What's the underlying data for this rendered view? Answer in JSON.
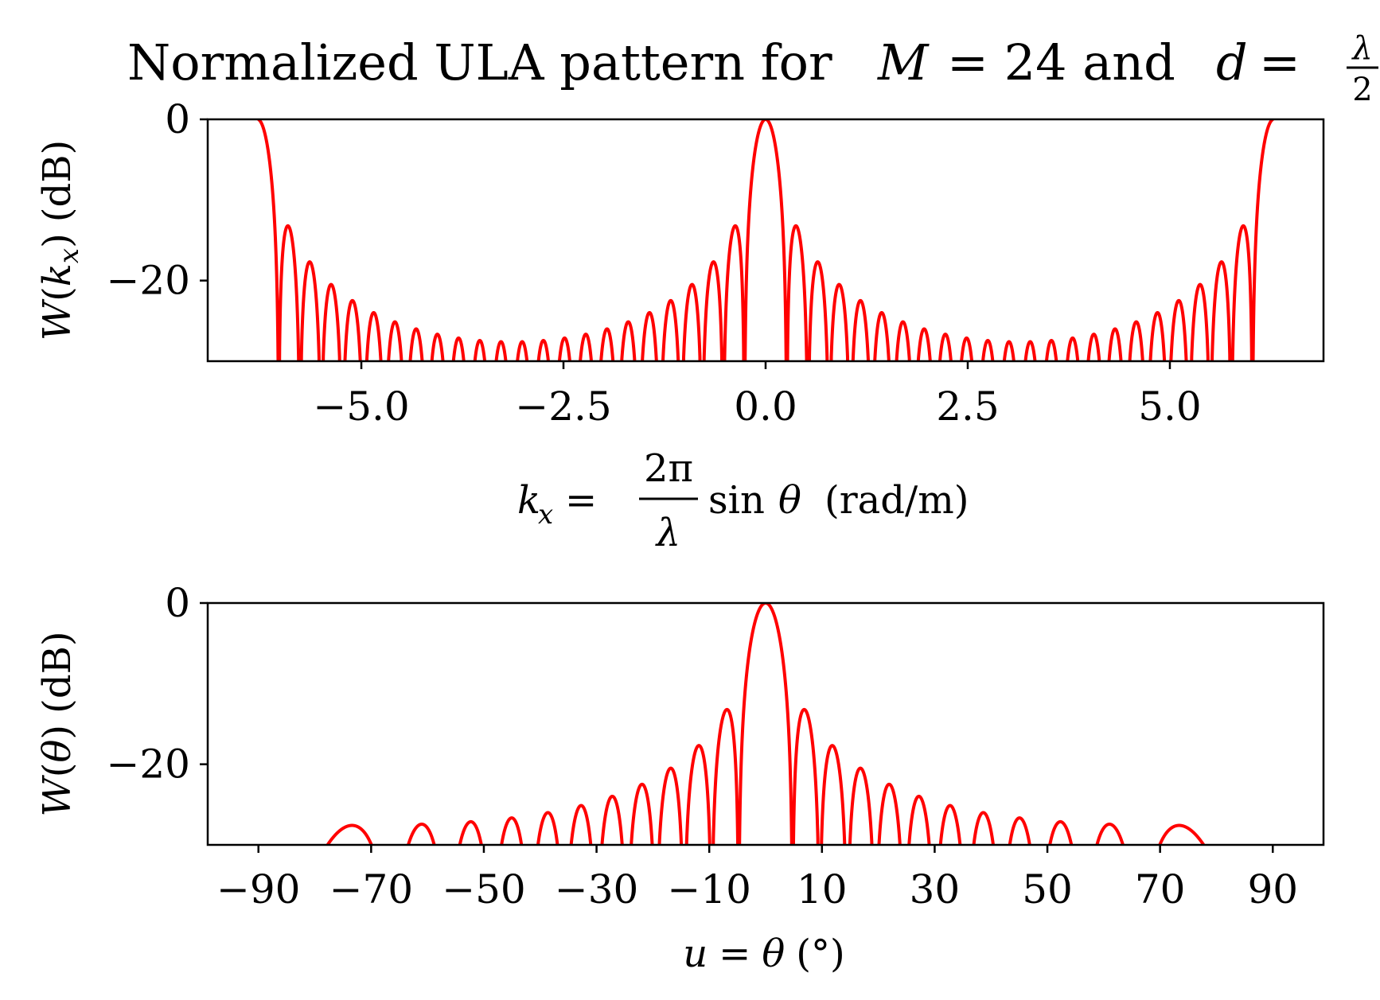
{
  "title": {
    "prefix": "Normalized ULA pattern for",
    "m_sym": "M",
    "eq1": "= 24 and",
    "d_sym": "d",
    "eq2": "=",
    "frac_num": "λ",
    "frac_den": "2"
  },
  "chart_data": [
    {
      "type": "line",
      "description_of_curve": "normalized array factor of a 24-element uniform linear array with half-wavelength spacing, in dB, clipped at the lower axis limit",
      "xlim": [
        -6.9,
        6.9
      ],
      "ylim": [
        -30,
        0
      ],
      "xticks": [
        -5.0,
        -2.5,
        0.0,
        2.5,
        5.0
      ],
      "xtick_labels": [
        "−5.0",
        "−2.5",
        "0.0",
        "2.5",
        "5.0"
      ],
      "yticks": [
        0,
        -20
      ],
      "ytick_labels": [
        "0",
        "−20"
      ],
      "xlabel": {
        "lhs_sym": "k",
        "lhs_sub": "x",
        "eq": "=",
        "frac_num": "2π",
        "frac_den": "λ",
        "rhs": "sin",
        "theta": "θ",
        "unit": "(rad/m)"
      },
      "ylabel": {
        "sym": "W",
        "open": "(",
        "arg": "k",
        "arg_sub": "x",
        "close": ")",
        "unit": "(dB)"
      },
      "series": [
        {
          "color": "#ff0000",
          "M": 24,
          "d_over_lambda": 0.5,
          "x_range": [
            -6.2832,
            6.2832
          ],
          "main_lobe_peak": [
            0.0,
            0
          ],
          "first_null_kx": 0.5236,
          "sidelobe_peaks_approx": [
            [
              0.78,
              -13.3
            ],
            [
              1.3,
              -17.8
            ],
            [
              1.83,
              -20.6
            ],
            [
              2.36,
              -22.5
            ],
            [
              2.89,
              -24.0
            ],
            [
              3.41,
              -25.1
            ],
            [
              3.93,
              -25.9
            ],
            [
              4.45,
              -26.6
            ],
            [
              4.98,
              -27.1
            ],
            [
              5.5,
              -27.4
            ],
            [
              6.02,
              -27.6
            ]
          ]
        }
      ]
    },
    {
      "type": "line",
      "description_of_curve": "same pattern versus angle theta in degrees",
      "xlim": [
        -99,
        99
      ],
      "ylim": [
        -30,
        0
      ],
      "xticks": [
        -90,
        -70,
        -50,
        -30,
        -10,
        10,
        30,
        50,
        70,
        90
      ],
      "xtick_labels": [
        "−90",
        "−70",
        "−50",
        "−30",
        "−10",
        "10",
        "30",
        "50",
        "70",
        "90"
      ],
      "yticks": [
        0,
        -20
      ],
      "ytick_labels": [
        "0",
        "−20"
      ],
      "xlabel": {
        "lhs": "u",
        "eq": "=",
        "theta": "θ",
        "unit": "(°)"
      },
      "ylabel": {
        "sym": "W",
        "open": "(",
        "arg": "θ",
        "close": ")",
        "unit": "(dB)"
      },
      "series": [
        {
          "color": "#ff0000",
          "M": 24,
          "d_over_lambda": 0.5,
          "x_range": [
            -90,
            90
          ],
          "main_lobe_peak": [
            0,
            0
          ],
          "first_null_deg": 4.78,
          "sidelobe_peaks_approx": [
            [
              7.2,
              -13.3
            ],
            [
              12.0,
              -17.8
            ],
            [
              16.9,
              -20.6
            ],
            [
              22.0,
              -22.5
            ],
            [
              27.2,
              -24.0
            ],
            [
              32.9,
              -25.1
            ],
            [
              38.7,
              -25.9
            ],
            [
              45.1,
              -26.6
            ],
            [
              52.4,
              -27.1
            ],
            [
              61.0,
              -27.4
            ],
            [
              73.6,
              -27.6
            ]
          ]
        }
      ]
    }
  ]
}
